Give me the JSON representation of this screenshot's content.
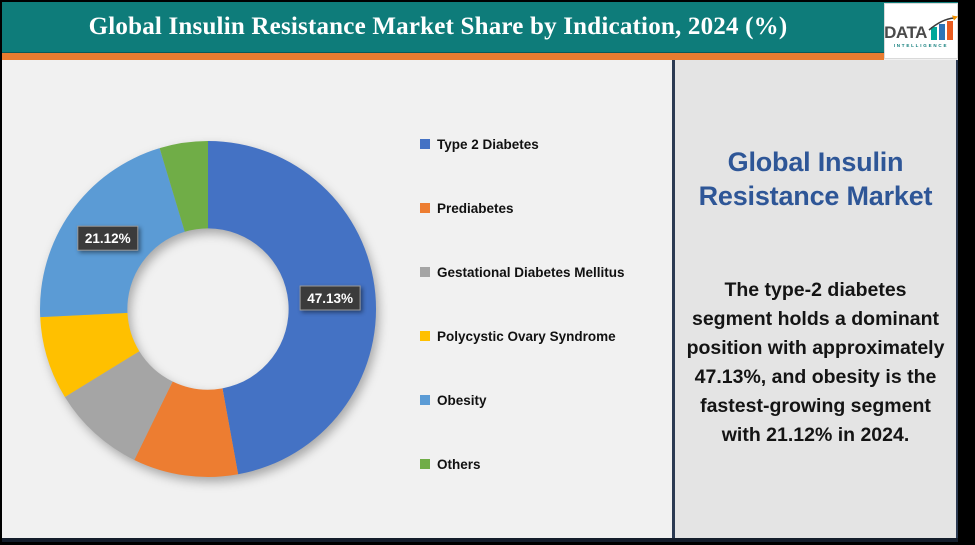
{
  "header": {
    "title": "Global Insulin Resistance Market Share by Indication, 2024 (%)",
    "logo": {
      "text": "DATA",
      "subtext": "INTELLIGENCE"
    }
  },
  "panel": {
    "title": "Global Insulin Resistance Market",
    "description": "The type-2 diabetes segment holds a dominant position with approximately 47.13%, and obesity is the fastest-growing segment with 21.12% in 2024."
  },
  "chart_data": {
    "type": "pie",
    "subtype": "donut",
    "title": "Global Insulin Resistance Market Share by Indication, 2024 (%)",
    "unit": "%",
    "direction": "clockwise",
    "start_angle_deg": 0,
    "hole_ratio": 0.48,
    "legend_position": "right",
    "segments": [
      {
        "label": "Type 2 Diabetes",
        "value": 47.13,
        "color": "#4472C4",
        "data_label": "47.13%"
      },
      {
        "label": "Prediabetes",
        "value": 10.1,
        "color": "#ED7D31"
      },
      {
        "label": "Gestational Diabetes Mellitus",
        "value": 9.0,
        "color": "#A5A5A5"
      },
      {
        "label": "Polycystic Ovary Syndrome",
        "value": 8.0,
        "color": "#FFC000"
      },
      {
        "label": "Obesity",
        "value": 21.12,
        "color": "#5B9BD5",
        "data_label": "21.12%"
      },
      {
        "label": "Others",
        "value": 4.65,
        "color": "#70AD47"
      }
    ]
  },
  "colors": {
    "header_teal": "#0E7C7A",
    "accent_orange": "#E97C30",
    "panel_title_blue": "#2E5697",
    "data_label_box": "#3B3B3B",
    "divider_navy": "#2B3A52"
  }
}
